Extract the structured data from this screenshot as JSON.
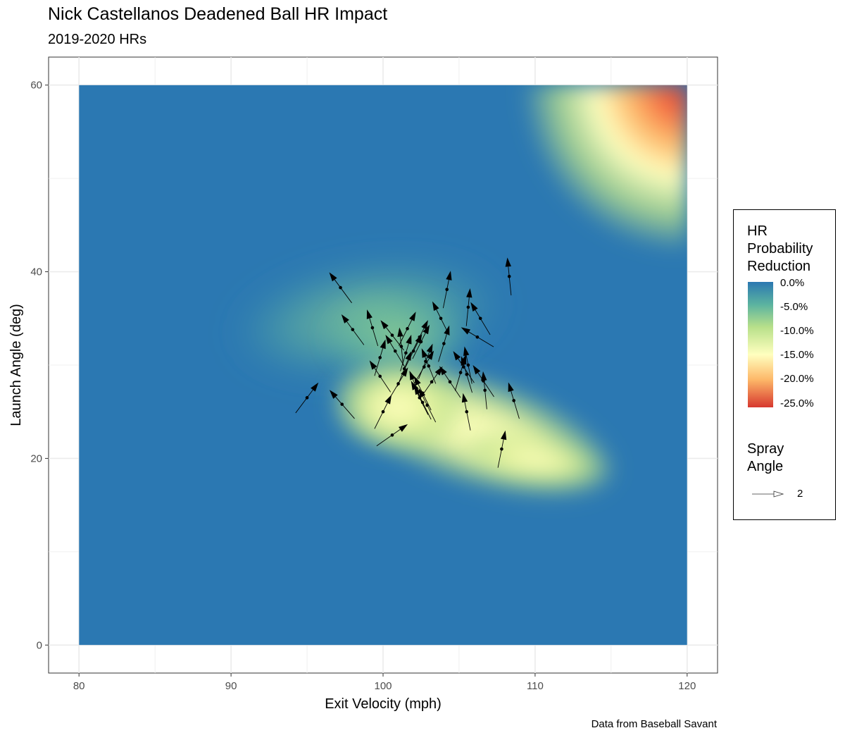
{
  "chart_data": {
    "type": "heatmap",
    "title": "Nick Castellanos Deadened Ball HR Impact",
    "subtitle": "2019-2020 HRs",
    "xlabel": "Exit Velocity (mph)",
    "ylabel": "Launch Angle (deg)",
    "xlim": [
      78,
      122
    ],
    "ylim": [
      -3,
      63
    ],
    "x_ticks": [
      "80",
      "90",
      "100",
      "110",
      "120"
    ],
    "y_ticks": [
      "0",
      "20",
      "40",
      "60"
    ],
    "grid": true,
    "legend_position": "right",
    "fill": {
      "name": "HR Probability Reduction",
      "scale_labels": [
        "0.0%",
        "-5.0%",
        "-10.0%",
        "-15.0%",
        "-20.0%",
        "-25.0%"
      ],
      "colors": [
        "#2b78b2",
        "#5bb3a0",
        "#b8e08a",
        "#ffffbf",
        "#fdb768",
        "#d7382f"
      ],
      "regions": [
        {
          "ev_min": 98,
          "ev_max": 113,
          "la_min": 17,
          "la_max": 33,
          "peak_reduction": -14,
          "peak_ev": 101,
          "peak_la": 25
        },
        {
          "ev_min": 110,
          "ev_max": 120,
          "la_min": 45,
          "la_max": 60,
          "peak_reduction": -25,
          "peak_ev": 120,
          "peak_la": 60
        }
      ]
    },
    "arrow_legend": {
      "name": "Spray Angle",
      "label": "2"
    },
    "points": [
      {
        "ev": 97.2,
        "la": 38.3,
        "dx": -0.7,
        "dy": 0.95
      },
      {
        "ev": 104.2,
        "la": 38.1,
        "dx": 0.2,
        "dy": 1.0
      },
      {
        "ev": 108.3,
        "la": 39.5,
        "dx": -0.1,
        "dy": 1.0
      },
      {
        "ev": 98.0,
        "la": 33.8,
        "dx": -0.7,
        "dy": 0.95
      },
      {
        "ev": 99.3,
        "la": 34.0,
        "dx": -0.3,
        "dy": 1.0
      },
      {
        "ev": 100.6,
        "la": 33.2,
        "dx": -0.7,
        "dy": 0.9
      },
      {
        "ev": 101.6,
        "la": 33.9,
        "dx": 0.5,
        "dy": 1.0
      },
      {
        "ev": 102.4,
        "la": 33.0,
        "dx": 0.5,
        "dy": 1.0
      },
      {
        "ev": 103.8,
        "la": 35.0,
        "dx": -0.5,
        "dy": 1.0
      },
      {
        "ev": 105.6,
        "la": 36.2,
        "dx": 0.1,
        "dy": 1.0
      },
      {
        "ev": 106.4,
        "la": 35.0,
        "dx": -0.6,
        "dy": 1.0
      },
      {
        "ev": 106.2,
        "la": 33.0,
        "dx": -1.0,
        "dy": 0.6
      },
      {
        "ev": 104.0,
        "la": 32.3,
        "dx": 0.3,
        "dy": 1.0
      },
      {
        "ev": 101.2,
        "la": 32.0,
        "dx": -0.1,
        "dy": 1.0
      },
      {
        "ev": 100.8,
        "la": 31.5,
        "dx": -0.6,
        "dy": 1.0
      },
      {
        "ev": 102.0,
        "la": 31.5,
        "dx": 0.5,
        "dy": 1.0
      },
      {
        "ev": 101.5,
        "la": 31.3,
        "dx": 0.3,
        "dy": 1.0
      },
      {
        "ev": 102.5,
        "la": 32.5,
        "dx": 0.5,
        "dy": 1.0
      },
      {
        "ev": 99.8,
        "la": 30.8,
        "dx": 0.3,
        "dy": 1.0
      },
      {
        "ev": 102.8,
        "la": 30.4,
        "dx": 0.4,
        "dy": 1.0
      },
      {
        "ev": 103.0,
        "la": 29.9,
        "dx": -0.4,
        "dy": 1.0
      },
      {
        "ev": 101.4,
        "la": 29.6,
        "dx": 0.4,
        "dy": 1.0
      },
      {
        "ev": 102.7,
        "la": 29.8,
        "dx": 0.6,
        "dy": 1.0
      },
      {
        "ev": 105.3,
        "la": 29.8,
        "dx": -0.6,
        "dy": 0.9
      },
      {
        "ev": 105.6,
        "la": 30.0,
        "dx": -0.2,
        "dy": 1.0
      },
      {
        "ev": 105.1,
        "la": 29.2,
        "dx": 0.3,
        "dy": 1.0
      },
      {
        "ev": 105.5,
        "la": 29.0,
        "dx": -0.3,
        "dy": 1.0
      },
      {
        "ev": 99.8,
        "la": 28.8,
        "dx": -0.6,
        "dy": 0.9
      },
      {
        "ev": 101.0,
        "la": 28.0,
        "dx": 0.6,
        "dy": 1.0
      },
      {
        "ev": 104.4,
        "la": 28.2,
        "dx": -0.6,
        "dy": 0.9
      },
      {
        "ev": 103.2,
        "la": 28.2,
        "dx": 0.7,
        "dy": 1.0
      },
      {
        "ev": 106.6,
        "la": 28.3,
        "dx": -0.6,
        "dy": 0.9
      },
      {
        "ev": 102.2,
        "la": 27.5,
        "dx": -0.4,
        "dy": 1.0
      },
      {
        "ev": 102.6,
        "la": 27.0,
        "dx": -0.5,
        "dy": 1.0
      },
      {
        "ev": 102.4,
        "la": 26.5,
        "dx": -0.5,
        "dy": 1.0
      },
      {
        "ev": 102.6,
        "la": 26.0,
        "dx": -0.5,
        "dy": 1.0
      },
      {
        "ev": 102.9,
        "la": 25.7,
        "dx": -0.5,
        "dy": 1.0
      },
      {
        "ev": 106.7,
        "la": 27.3,
        "dx": -0.1,
        "dy": 1.0
      },
      {
        "ev": 108.6,
        "la": 26.2,
        "dx": -0.3,
        "dy": 1.0
      },
      {
        "ev": 95.0,
        "la": 26.5,
        "dx": 0.6,
        "dy": 0.8
      },
      {
        "ev": 97.3,
        "la": 25.8,
        "dx": -0.7,
        "dy": 0.8
      },
      {
        "ev": 100.0,
        "la": 25.0,
        "dx": 0.5,
        "dy": 1.0
      },
      {
        "ev": 105.5,
        "la": 25.0,
        "dx": -0.2,
        "dy": 1.0
      },
      {
        "ev": 100.6,
        "la": 22.5,
        "dx": 1.0,
        "dy": 0.7
      },
      {
        "ev": 107.8,
        "la": 21.0,
        "dx": 0.2,
        "dy": 1.0
      }
    ]
  },
  "caption": "Data from Baseball Savant",
  "legend": {
    "fill_title": "HR\nProbability\nReduction",
    "arrow_title": "Spray\nAngle"
  }
}
